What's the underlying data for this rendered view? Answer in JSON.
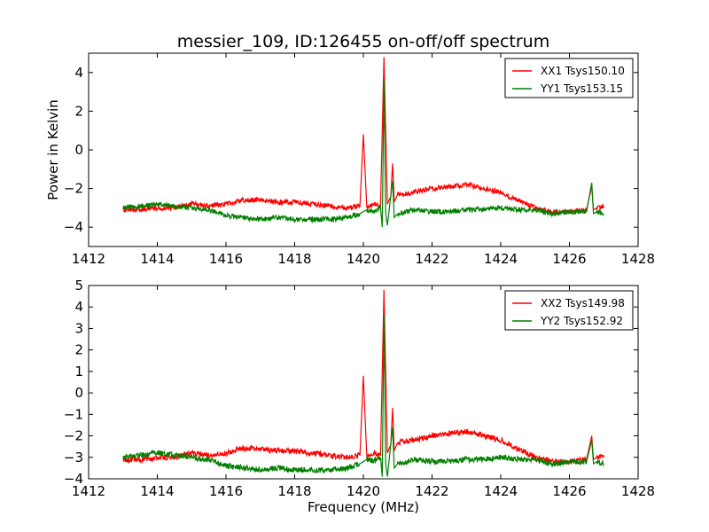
{
  "page": {
    "title": "messier_109, ID:126455 on-off/off spectrum"
  },
  "chart_data": [
    {
      "type": "line",
      "title": "messier_109, ID:126455 on-off/off spectrum",
      "xlabel": "",
      "ylabel": "Power in Kelvin",
      "xlim": [
        1412,
        1428
      ],
      "ylim": [
        -5,
        5
      ],
      "xticks": [
        1412,
        1414,
        1416,
        1418,
        1420,
        1422,
        1424,
        1426,
        1428
      ],
      "yticks": [
        -4,
        -2,
        0,
        2,
        4
      ],
      "x_range_data": [
        1413.0,
        1427.0
      ],
      "grid": false,
      "legend_position": "top-right",
      "series": [
        {
          "name": "XX1 Tsys150.10",
          "color": "#ff0000",
          "x": [
            1413.0,
            1413.5,
            1414.0,
            1414.5,
            1415.0,
            1415.5,
            1416.0,
            1416.5,
            1417.0,
            1417.5,
            1418.0,
            1418.5,
            1419.0,
            1419.5,
            1419.9,
            1420.0,
            1420.1,
            1420.3,
            1420.5,
            1420.6,
            1420.7,
            1420.8,
            1420.85,
            1420.9,
            1421.0,
            1421.5,
            1422.0,
            1422.5,
            1423.0,
            1423.5,
            1424.0,
            1424.5,
            1425.0,
            1425.5,
            1426.0,
            1426.5,
            1426.65,
            1426.7,
            1426.8,
            1427.0
          ],
          "values": [
            -3.1,
            -3.1,
            -3.0,
            -3.0,
            -2.8,
            -2.9,
            -2.8,
            -2.6,
            -2.6,
            -2.7,
            -2.7,
            -2.8,
            -2.9,
            -3.0,
            -2.9,
            0.8,
            -3.0,
            -2.8,
            -2.9,
            4.8,
            -2.8,
            -2.4,
            -0.7,
            -2.7,
            -2.3,
            -2.2,
            -2.0,
            -1.9,
            -1.8,
            -2.0,
            -2.2,
            -2.6,
            -3.0,
            -3.2,
            -3.2,
            -3.1,
            -1.9,
            -3.1,
            -3.0,
            -2.9
          ]
        },
        {
          "name": "YY1 Tsys153.15",
          "color": "#007f00",
          "x": [
            1413.0,
            1413.5,
            1414.0,
            1414.5,
            1415.0,
            1415.5,
            1416.0,
            1416.5,
            1417.0,
            1417.5,
            1418.0,
            1418.5,
            1419.0,
            1419.5,
            1419.9,
            1420.1,
            1420.3,
            1420.5,
            1420.55,
            1420.6,
            1420.65,
            1420.7,
            1420.85,
            1420.9,
            1421.0,
            1421.5,
            1422.0,
            1422.5,
            1423.0,
            1423.5,
            1424.0,
            1424.5,
            1425.0,
            1425.5,
            1426.0,
            1426.5,
            1426.65,
            1426.7,
            1426.8,
            1427.0
          ],
          "values": [
            -3.0,
            -2.9,
            -2.8,
            -2.9,
            -3.0,
            -3.1,
            -3.4,
            -3.5,
            -3.6,
            -3.5,
            -3.6,
            -3.6,
            -3.6,
            -3.5,
            -3.3,
            -3.1,
            -3.2,
            -3.0,
            -4.0,
            3.6,
            -3.3,
            -3.9,
            -1.6,
            -3.5,
            -3.3,
            -3.1,
            -3.2,
            -3.2,
            -3.1,
            -3.1,
            -3.0,
            -3.1,
            -3.1,
            -3.3,
            -3.2,
            -3.2,
            -1.7,
            -3.3,
            -3.2,
            -3.3
          ]
        }
      ]
    },
    {
      "type": "line",
      "title": "",
      "xlabel": "Frequency (MHz)",
      "ylabel": "",
      "xlim": [
        1412,
        1428
      ],
      "ylim": [
        -4,
        5
      ],
      "xticks": [
        1412,
        1414,
        1416,
        1418,
        1420,
        1422,
        1424,
        1426,
        1428
      ],
      "yticks": [
        -4,
        -3,
        -2,
        -1,
        0,
        1,
        2,
        3,
        4,
        5
      ],
      "x_range_data": [
        1413.0,
        1427.0
      ],
      "grid": false,
      "legend_position": "top-right",
      "series": [
        {
          "name": "XX2 Tsys149.98",
          "color": "#ff0000",
          "x": [
            1413.0,
            1413.5,
            1414.0,
            1414.5,
            1415.0,
            1415.5,
            1416.0,
            1416.5,
            1417.0,
            1417.5,
            1418.0,
            1418.5,
            1419.0,
            1419.5,
            1419.9,
            1420.0,
            1420.1,
            1420.3,
            1420.5,
            1420.6,
            1420.7,
            1420.8,
            1420.85,
            1420.9,
            1421.0,
            1421.5,
            1422.0,
            1422.5,
            1423.0,
            1423.5,
            1424.0,
            1424.5,
            1425.0,
            1425.5,
            1426.0,
            1426.5,
            1426.65,
            1426.7,
            1426.8,
            1427.0
          ],
          "values": [
            -3.1,
            -3.1,
            -3.0,
            -3.0,
            -2.8,
            -2.9,
            -2.8,
            -2.6,
            -2.6,
            -2.7,
            -2.7,
            -2.8,
            -2.9,
            -3.0,
            -2.9,
            0.8,
            -3.0,
            -2.8,
            -2.9,
            4.8,
            -2.8,
            -2.4,
            -0.7,
            -2.7,
            -2.3,
            -2.2,
            -2.0,
            -1.9,
            -1.8,
            -2.0,
            -2.2,
            -2.6,
            -3.0,
            -3.2,
            -3.2,
            -3.1,
            -2.0,
            -3.1,
            -3.0,
            -2.9
          ]
        },
        {
          "name": "YY2 Tsys152.92",
          "color": "#007f00",
          "x": [
            1413.0,
            1413.5,
            1414.0,
            1414.5,
            1415.0,
            1415.5,
            1416.0,
            1416.5,
            1417.0,
            1417.5,
            1418.0,
            1418.5,
            1419.0,
            1419.5,
            1419.9,
            1420.1,
            1420.3,
            1420.5,
            1420.55,
            1420.6,
            1420.65,
            1420.7,
            1420.85,
            1420.9,
            1421.0,
            1421.5,
            1422.0,
            1422.5,
            1423.0,
            1423.5,
            1424.0,
            1424.5,
            1425.0,
            1425.5,
            1426.0,
            1426.5,
            1426.65,
            1426.7,
            1426.8,
            1427.0
          ],
          "values": [
            -3.0,
            -2.9,
            -2.8,
            -2.9,
            -3.0,
            -3.1,
            -3.4,
            -3.5,
            -3.6,
            -3.5,
            -3.6,
            -3.6,
            -3.6,
            -3.5,
            -3.3,
            -3.1,
            -3.2,
            -3.0,
            -3.9,
            3.6,
            -3.3,
            -3.9,
            -1.6,
            -3.5,
            -3.3,
            -3.1,
            -3.2,
            -3.2,
            -3.1,
            -3.1,
            -3.0,
            -3.1,
            -3.1,
            -3.3,
            -3.2,
            -3.2,
            -2.2,
            -3.3,
            -3.2,
            -3.3
          ]
        }
      ]
    }
  ]
}
